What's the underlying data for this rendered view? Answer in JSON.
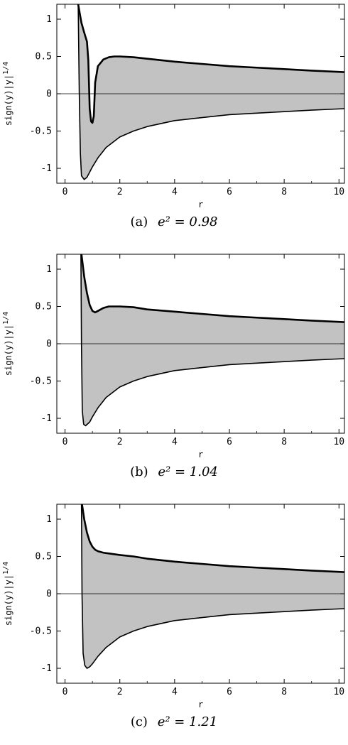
{
  "chart_data": [
    {
      "type": "area",
      "caption_tag": "(a)",
      "caption_eq": "e² = 0.98",
      "xlabel": "r",
      "ylabel": "sign(y)|y|^1/4",
      "xlim": [
        -0.3,
        10.2
      ],
      "ylim": [
        -1.2,
        1.2
      ],
      "x_ticks": [
        "0",
        "2",
        "4",
        "6",
        "8",
        "10"
      ],
      "y_ticks": [
        "1",
        "0.5",
        "0",
        "-0.5",
        "-1"
      ],
      "upper": {
        "x": [
          0.48,
          0.55,
          0.6,
          0.7,
          0.8,
          0.85,
          0.9,
          0.95,
          1.0,
          1.05,
          1.1,
          1.2,
          1.4,
          1.6,
          1.8,
          2.0,
          2.5,
          3,
          4,
          5,
          6,
          7,
          8,
          9,
          10.2
        ],
        "y": [
          1.2,
          1.05,
          0.95,
          0.82,
          0.7,
          0.45,
          -0.2,
          -0.37,
          -0.39,
          -0.3,
          0.15,
          0.37,
          0.46,
          0.49,
          0.5,
          0.5,
          0.49,
          0.47,
          0.43,
          0.4,
          0.37,
          0.35,
          0.33,
          0.31,
          0.29
        ]
      },
      "lower": {
        "x": [
          0.48,
          0.52,
          0.56,
          0.6,
          0.7,
          0.8,
          1.0,
          1.2,
          1.5,
          2.0,
          2.5,
          3,
          4,
          5,
          6,
          7,
          8,
          9,
          10.2
        ],
        "y": [
          1.2,
          0.0,
          -0.8,
          -1.1,
          -1.15,
          -1.12,
          -0.98,
          -0.86,
          -0.72,
          -0.58,
          -0.5,
          -0.44,
          -0.36,
          -0.32,
          -0.28,
          -0.26,
          -0.24,
          -0.22,
          -0.2
        ]
      }
    },
    {
      "type": "area",
      "caption_tag": "(b)",
      "caption_eq": "e² = 1.04",
      "xlabel": "r",
      "ylabel": "sign(y)|y|^1/4",
      "xlim": [
        -0.3,
        10.2
      ],
      "ylim": [
        -1.2,
        1.2
      ],
      "x_ticks": [
        "0",
        "2",
        "4",
        "6",
        "8",
        "10"
      ],
      "y_ticks": [
        "1",
        "0.5",
        "0",
        "-0.5",
        "-1"
      ],
      "upper": {
        "x": [
          0.6,
          0.7,
          0.8,
          0.9,
          1.0,
          1.1,
          1.2,
          1.4,
          1.6,
          1.8,
          2.0,
          2.5,
          3,
          4,
          5,
          6,
          7,
          8,
          9,
          10.2
        ],
        "y": [
          1.2,
          0.9,
          0.68,
          0.52,
          0.44,
          0.42,
          0.44,
          0.48,
          0.5,
          0.5,
          0.5,
          0.49,
          0.46,
          0.43,
          0.4,
          0.37,
          0.35,
          0.33,
          0.31,
          0.29
        ]
      },
      "lower": {
        "x": [
          0.58,
          0.6,
          0.63,
          0.68,
          0.75,
          0.9,
          1.0,
          1.2,
          1.5,
          2.0,
          2.5,
          3,
          4,
          5,
          6,
          7,
          8,
          9,
          10.2
        ],
        "y": [
          1.2,
          0.0,
          -0.9,
          -1.08,
          -1.1,
          -1.05,
          -0.98,
          -0.86,
          -0.72,
          -0.58,
          -0.5,
          -0.44,
          -0.36,
          -0.32,
          -0.28,
          -0.26,
          -0.24,
          -0.22,
          -0.2
        ]
      }
    },
    {
      "type": "area",
      "caption_tag": "(c)",
      "caption_eq": "e² = 1.21",
      "xlabel": "r",
      "ylabel": "sign(y)|y|^1/4",
      "xlim": [
        -0.3,
        10.2
      ],
      "ylim": [
        -1.2,
        1.2
      ],
      "x_ticks": [
        "0",
        "2",
        "4",
        "6",
        "8",
        "10"
      ],
      "y_ticks": [
        "1",
        "0.5",
        "0",
        "-0.5",
        "-1"
      ],
      "upper": {
        "x": [
          0.62,
          0.7,
          0.8,
          0.9,
          1.0,
          1.1,
          1.2,
          1.4,
          1.6,
          2.0,
          2.5,
          3,
          4,
          5,
          6,
          7,
          8,
          9,
          10.2
        ],
        "y": [
          1.2,
          1.0,
          0.82,
          0.7,
          0.63,
          0.59,
          0.57,
          0.55,
          0.54,
          0.52,
          0.5,
          0.47,
          0.43,
          0.4,
          0.37,
          0.35,
          0.33,
          0.31,
          0.29
        ]
      },
      "lower": {
        "x": [
          0.6,
          0.62,
          0.66,
          0.72,
          0.8,
          0.9,
          1.0,
          1.2,
          1.5,
          2.0,
          2.5,
          3,
          4,
          5,
          6,
          7,
          8,
          9,
          10.2
        ],
        "y": [
          1.2,
          0.0,
          -0.8,
          -0.96,
          -1.0,
          -0.98,
          -0.94,
          -0.84,
          -0.72,
          -0.58,
          -0.5,
          -0.44,
          -0.36,
          -0.32,
          -0.28,
          -0.26,
          -0.24,
          -0.22,
          -0.2
        ]
      }
    }
  ]
}
